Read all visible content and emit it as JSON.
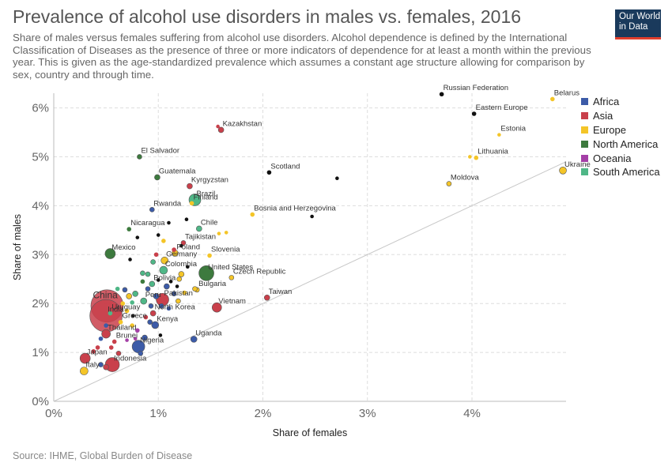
{
  "header": {
    "title": "Prevalence of alcohol use disorders in males vs. females, 2016",
    "subtitle": "Share of males versus females suffering from alcohol use disorders. Alcohol dependence is defined by the International Classification of Diseases as the presence of three or more indicators of dependence for at least a month within the previous year. This is given as the age-standardized prevalence which assumes a constant age structure allowing for comparison by sex, country and through time.",
    "logo_line1": "Our World",
    "logo_line2": "in Data"
  },
  "footer": {
    "source": "Source: IHME, Global Burden of Disease"
  },
  "colors": {
    "Africa": "#3c5ba8",
    "Asia": "#c9404b",
    "Europe": "#f4c528",
    "North America": "#3d7a3e",
    "Oceania": "#a43fa6",
    "South America": "#4fb787",
    "unlabeled": "#111111"
  },
  "legend": [
    "Africa",
    "Asia",
    "Europe",
    "North America",
    "Oceania",
    "South America"
  ],
  "chart_data": {
    "type": "scatter",
    "title": "Prevalence of alcohol use disorders in males vs. females, 2016",
    "xlabel": "Share of females",
    "ylabel": "Share of males",
    "xlim": [
      0,
      4.9
    ],
    "ylim": [
      0,
      6.3
    ],
    "x_ticks": [
      "0%",
      "1%",
      "2%",
      "3%",
      "4%"
    ],
    "y_ticks": [
      "0%",
      "1%",
      "2%",
      "3%",
      "4%",
      "5%",
      "6%"
    ],
    "grid": true,
    "legend_position": "right",
    "reference_line": "y = x",
    "points": [
      {
        "name": "Russian Federation",
        "x": 3.71,
        "y": 6.28,
        "region": null,
        "size": 4
      },
      {
        "name": "Belarus",
        "x": 4.77,
        "y": 6.18,
        "region": "Europe",
        "size": 4
      },
      {
        "name": "Eastern Europe",
        "x": 4.02,
        "y": 5.88,
        "region": null,
        "size": 4
      },
      {
        "name": "Estonia",
        "x": 4.26,
        "y": 5.45,
        "region": "Europe",
        "size": 3
      },
      {
        "name": "Kazakhstan",
        "x": 1.6,
        "y": 5.55,
        "region": "Asia",
        "size": 6
      },
      {
        "name": "El Salvador",
        "x": 0.82,
        "y": 5.0,
        "region": "North America",
        "size": 5
      },
      {
        "name": "Lithuania",
        "x": 4.04,
        "y": 4.98,
        "region": "Europe",
        "size": 4
      },
      {
        "name": "Ukraine",
        "x": 4.87,
        "y": 4.72,
        "region": "Europe",
        "size": 8
      },
      {
        "name": "Scotland",
        "x": 2.06,
        "y": 4.68,
        "region": null,
        "size": 4
      },
      {
        "name": "Guatemala",
        "x": 0.99,
        "y": 4.58,
        "region": "North America",
        "size": 6
      },
      {
        "name": "Moldova",
        "x": 3.78,
        "y": 4.45,
        "region": "Europe",
        "size": 5
      },
      {
        "name": "Kyrgyzstan",
        "x": 1.3,
        "y": 4.4,
        "region": "Asia",
        "size": 6
      },
      {
        "name": "Brazil",
        "x": 1.35,
        "y": 4.12,
        "region": "South America",
        "size": 14
      },
      {
        "name": "Finland",
        "x": 1.32,
        "y": 4.05,
        "region": "Europe",
        "size": 4
      },
      {
        "name": "Rwanda",
        "x": 0.94,
        "y": 3.92,
        "region": "Africa",
        "size": 5
      },
      {
        "name": "Bosnia and Herzegovina",
        "x": 1.9,
        "y": 3.82,
        "region": "Europe",
        "size": 4
      },
      {
        "name": "Nicaragua",
        "x": 0.72,
        "y": 3.52,
        "region": "North America",
        "size": 4
      },
      {
        "name": "Chile",
        "x": 1.39,
        "y": 3.53,
        "region": "South America",
        "size": 6
      },
      {
        "name": "Tajikistan",
        "x": 1.24,
        "y": 3.24,
        "region": "Asia",
        "size": 5
      },
      {
        "name": "Mexico",
        "x": 0.54,
        "y": 3.02,
        "region": "North America",
        "size": 12
      },
      {
        "name": "Poland",
        "x": 1.16,
        "y": 3.03,
        "region": "Europe",
        "size": 7
      },
      {
        "name": "Slovenia",
        "x": 1.49,
        "y": 2.98,
        "region": "Europe",
        "size": 4
      },
      {
        "name": "Germany",
        "x": 1.06,
        "y": 2.88,
        "region": "Europe",
        "size": 8
      },
      {
        "name": "United States",
        "x": 1.46,
        "y": 2.62,
        "region": "North America",
        "size": 18
      },
      {
        "name": "Colombia",
        "x": 1.05,
        "y": 2.68,
        "region": "South America",
        "size": 9
      },
      {
        "name": "Czech Republic",
        "x": 1.7,
        "y": 2.53,
        "region": "Europe",
        "size": 5
      },
      {
        "name": "Bolivia",
        "x": 0.94,
        "y": 2.4,
        "region": "South America",
        "size": 6
      },
      {
        "name": "Bulgaria",
        "x": 1.37,
        "y": 2.28,
        "region": "Europe",
        "size": 5
      },
      {
        "name": "China",
        "x": 0.51,
        "y": 1.95,
        "region": "Asia",
        "size": 40
      },
      {
        "name": "Peru",
        "x": 0.86,
        "y": 2.05,
        "region": "South America",
        "size": 7
      },
      {
        "name": "Pakistan",
        "x": 1.04,
        "y": 2.08,
        "region": "Asia",
        "size": 15
      },
      {
        "name": "Uruguay",
        "x": 0.54,
        "y": 1.8,
        "region": "South America",
        "size": 4
      },
      {
        "name": "India",
        "x": 0.5,
        "y": 1.75,
        "region": "Asia",
        "size": 40
      },
      {
        "name": "North Korea",
        "x": 0.95,
        "y": 1.8,
        "region": "Asia",
        "size": 6
      },
      {
        "name": "Taiwan",
        "x": 2.04,
        "y": 2.12,
        "region": "Asia",
        "size": 6
      },
      {
        "name": "Vietnam",
        "x": 1.56,
        "y": 1.92,
        "region": "Asia",
        "size": 11
      },
      {
        "name": "Greece",
        "x": 0.64,
        "y": 1.62,
        "region": "Europe",
        "size": 4
      },
      {
        "name": "Kenya",
        "x": 0.97,
        "y": 1.56,
        "region": "Africa",
        "size": 8
      },
      {
        "name": "Thailand",
        "x": 0.5,
        "y": 1.38,
        "region": "Asia",
        "size": 10
      },
      {
        "name": "Uganda",
        "x": 1.34,
        "y": 1.27,
        "region": "Africa",
        "size": 7
      },
      {
        "name": "Brunei",
        "x": 0.58,
        "y": 1.22,
        "region": "Asia",
        "size": 4
      },
      {
        "name": "Nigeria",
        "x": 0.81,
        "y": 1.12,
        "region": "Africa",
        "size": 15
      },
      {
        "name": "Japan",
        "x": 0.3,
        "y": 0.88,
        "region": "Asia",
        "size": 12
      },
      {
        "name": "Indonesia",
        "x": 0.56,
        "y": 0.75,
        "region": "Asia",
        "size": 17
      },
      {
        "name": "Italy",
        "x": 0.29,
        "y": 0.62,
        "region": "Europe",
        "size": 9
      },
      {
        "name": "",
        "x": 2.71,
        "y": 4.56,
        "region": null,
        "size": 3
      },
      {
        "name": "",
        "x": 2.47,
        "y": 3.78,
        "region": null,
        "size": 3
      },
      {
        "name": "",
        "x": 1.57,
        "y": 5.62,
        "region": "Asia",
        "size": 3
      },
      {
        "name": "",
        "x": 3.98,
        "y": 5.0,
        "region": "Europe",
        "size": 3
      },
      {
        "name": "",
        "x": 1.58,
        "y": 3.43,
        "region": "Europe",
        "size": 3
      },
      {
        "name": "",
        "x": 1.27,
        "y": 3.72,
        "region": null,
        "size": 3
      },
      {
        "name": "",
        "x": 1.28,
        "y": 2.75,
        "region": null,
        "size": 3
      },
      {
        "name": "",
        "x": 1.35,
        "y": 2.3,
        "region": "Europe",
        "size": 5
      },
      {
        "name": "",
        "x": 1.25,
        "y": 2.22,
        "region": "Europe",
        "size": 4
      },
      {
        "name": "",
        "x": 1.19,
        "y": 2.05,
        "region": "Europe",
        "size": 5
      },
      {
        "name": "",
        "x": 1.2,
        "y": 2.5,
        "region": "Europe",
        "size": 5
      },
      {
        "name": "",
        "x": 1.12,
        "y": 2.45,
        "region": null,
        "size": 3
      },
      {
        "name": "",
        "x": 1.22,
        "y": 2.6,
        "region": "Europe",
        "size": 6
      },
      {
        "name": "",
        "x": 1.15,
        "y": 2.2,
        "region": "Africa",
        "size": 5
      },
      {
        "name": "",
        "x": 1.08,
        "y": 2.35,
        "region": "Africa",
        "size": 6
      },
      {
        "name": "",
        "x": 1.03,
        "y": 1.95,
        "region": "Africa",
        "size": 5
      },
      {
        "name": "",
        "x": 0.98,
        "y": 2.15,
        "region": "Africa",
        "size": 6
      },
      {
        "name": "",
        "x": 0.9,
        "y": 2.3,
        "region": "Africa",
        "size": 5
      },
      {
        "name": "",
        "x": 0.93,
        "y": 1.95,
        "region": "Africa",
        "size": 5
      },
      {
        "name": "",
        "x": 0.88,
        "y": 1.72,
        "region": "Asia",
        "size": 4
      },
      {
        "name": "",
        "x": 0.78,
        "y": 2.2,
        "region": "South America",
        "size": 6
      },
      {
        "name": "",
        "x": 0.75,
        "y": 2.02,
        "region": "South America",
        "size": 4
      },
      {
        "name": "",
        "x": 0.72,
        "y": 2.15,
        "region": "Europe",
        "size": 6
      },
      {
        "name": "",
        "x": 0.7,
        "y": 1.85,
        "region": "Europe",
        "size": 4
      },
      {
        "name": "",
        "x": 0.68,
        "y": 2.28,
        "region": "Africa",
        "size": 5
      },
      {
        "name": "",
        "x": 0.66,
        "y": 2.0,
        "region": "Europe",
        "size": 4
      },
      {
        "name": "",
        "x": 0.75,
        "y": 1.55,
        "region": "Europe",
        "size": 4
      },
      {
        "name": "",
        "x": 0.8,
        "y": 1.45,
        "region": "Oceania",
        "size": 4
      },
      {
        "name": "",
        "x": 0.78,
        "y": 1.28,
        "region": "Oceania",
        "size": 3
      },
      {
        "name": "",
        "x": 0.87,
        "y": 1.3,
        "region": "Africa",
        "size": 6
      },
      {
        "name": "",
        "x": 0.83,
        "y": 0.98,
        "region": "Africa",
        "size": 5
      },
      {
        "name": "",
        "x": 0.62,
        "y": 0.98,
        "region": "Asia",
        "size": 5
      },
      {
        "name": "",
        "x": 0.55,
        "y": 1.1,
        "region": "Asia",
        "size": 4
      },
      {
        "name": "",
        "x": 0.45,
        "y": 0.75,
        "region": "Africa",
        "size": 5
      },
      {
        "name": "",
        "x": 0.5,
        "y": 0.7,
        "region": "Asia",
        "size": 6
      },
      {
        "name": "",
        "x": 0.38,
        "y": 1.02,
        "region": "Asia",
        "size": 4
      },
      {
        "name": "",
        "x": 0.42,
        "y": 1.1,
        "region": "Asia",
        "size": 4
      },
      {
        "name": "",
        "x": 0.45,
        "y": 1.28,
        "region": "Africa",
        "size": 4
      },
      {
        "name": "",
        "x": 0.5,
        "y": 1.55,
        "region": "Africa",
        "size": 4
      },
      {
        "name": "",
        "x": 0.61,
        "y": 2.3,
        "region": "South America",
        "size": 4
      },
      {
        "name": "",
        "x": 0.95,
        "y": 2.85,
        "region": "South America",
        "size": 5
      },
      {
        "name": "",
        "x": 0.9,
        "y": 2.6,
        "region": "South America",
        "size": 5
      },
      {
        "name": "",
        "x": 0.85,
        "y": 2.45,
        "region": "North America",
        "size": 4
      },
      {
        "name": "",
        "x": 0.73,
        "y": 2.9,
        "region": null,
        "size": 3
      },
      {
        "name": "",
        "x": 0.8,
        "y": 3.35,
        "region": null,
        "size": 3
      },
      {
        "name": "",
        "x": 1.0,
        "y": 3.4,
        "region": null,
        "size": 3
      },
      {
        "name": "",
        "x": 1.1,
        "y": 3.65,
        "region": null,
        "size": 3
      },
      {
        "name": "",
        "x": 1.05,
        "y": 3.28,
        "region": "Europe",
        "size": 4
      },
      {
        "name": "",
        "x": 1.15,
        "y": 3.1,
        "region": "Asia",
        "size": 4
      },
      {
        "name": "",
        "x": 1.22,
        "y": 3.18,
        "region": null,
        "size": 3
      },
      {
        "name": "",
        "x": 0.98,
        "y": 3.0,
        "region": "Asia",
        "size": 4
      },
      {
        "name": "",
        "x": 1.65,
        "y": 3.45,
        "region": "Europe",
        "size": 3
      },
      {
        "name": "",
        "x": 1.0,
        "y": 2.48,
        "region": null,
        "size": 3
      },
      {
        "name": "",
        "x": 0.85,
        "y": 2.62,
        "region": "South America",
        "size": 5
      },
      {
        "name": "",
        "x": 1.1,
        "y": 1.9,
        "region": "Africa",
        "size": 4
      },
      {
        "name": "",
        "x": 0.92,
        "y": 1.62,
        "region": "Africa",
        "size": 5
      },
      {
        "name": "",
        "x": 1.02,
        "y": 1.35,
        "region": null,
        "size": 3
      },
      {
        "name": "",
        "x": 0.7,
        "y": 1.25,
        "region": "Oceania",
        "size": 3
      },
      {
        "name": "",
        "x": 0.76,
        "y": 1.75,
        "region": null,
        "size": 3
      },
      {
        "name": "",
        "x": 1.18,
        "y": 2.35,
        "region": null,
        "size": 3
      }
    ]
  }
}
